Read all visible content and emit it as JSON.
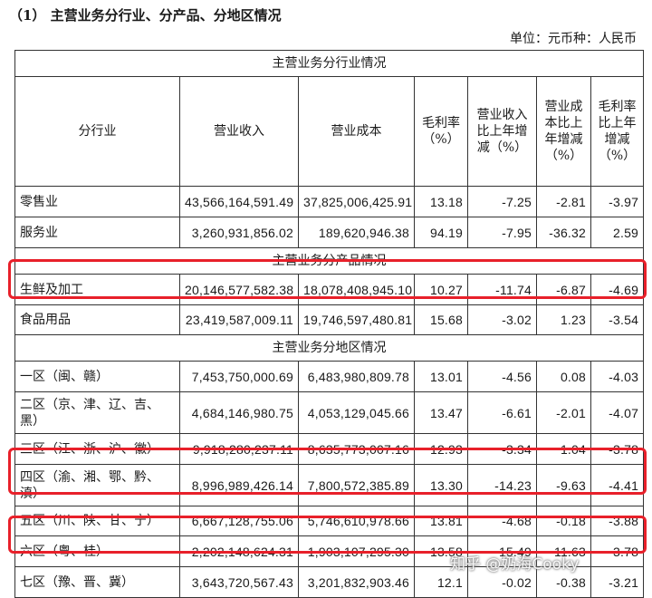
{
  "heading": "（1）  主营业务分行业、分产品、分地区情况",
  "unit_line": "单位：元币种：人民币",
  "columns": [
    "分行业",
    "营业收入",
    "营业成本",
    "毛利率（%）",
    "营业收入比上年增减（%）",
    "营业成本比上年增减（%）",
    "毛利率比上年增减（%）"
  ],
  "sections": [
    {
      "title": "主营业务分行业情况",
      "rows": [
        [
          "零售业",
          "43,566,164,591.49",
          "37,825,006,425.91",
          "13.18",
          "-7.25",
          "-2.81",
          "-3.97"
        ],
        [
          "服务业",
          "3,260,931,856.02",
          "189,620,946.38",
          "94.19",
          "-7.95",
          "-36.32",
          "2.59"
        ]
      ]
    },
    {
      "title": "主营业务分产品情况",
      "rows": [
        [
          "生鲜及加工",
          "20,146,577,582.38",
          "18,078,408,945.10",
          "10.27",
          "-11.74",
          "-6.87",
          "-4.69"
        ],
        [
          "食品用品",
          "23,419,587,009.11",
          "19,746,597,480.81",
          "15.68",
          "-3.02",
          "1.23",
          "-3.54"
        ]
      ]
    },
    {
      "title": "主营业务分地区情况",
      "rows": [
        [
          "一区（闽、赣）",
          "7,453,750,000.69",
          "6,483,980,809.78",
          "13.01",
          "-4.56",
          "0.08",
          "-4.03"
        ],
        [
          "二区（京、津、辽、吉、黑）",
          "4,684,146,980.75",
          "4,053,129,045.66",
          "13.47",
          "-6.61",
          "-2.01",
          "-4.07"
        ],
        [
          "三区（江、浙、沪、徽）",
          "9,918,280,237.11",
          "8,635,773,007.16",
          "12.93",
          "-3.34",
          "1.04",
          "-3.78"
        ],
        [
          "四区（渝、湘、鄂、黔、滇）",
          "8,996,989,426.14",
          "7,800,572,385.89",
          "13.30",
          "-14.23",
          "-9.63",
          "-4.41"
        ],
        [
          "五区（川、陕、甘、宁）",
          "6,667,128,755.06",
          "5,746,610,978.66",
          "13.81",
          "-4.68",
          "-0.18",
          "-3.88"
        ],
        [
          "六区（粤、桂）",
          "2,202,148,624.31",
          "1,903,107,295.30",
          "13.58",
          "-15.49",
          "-11.63",
          "-3.78"
        ],
        [
          "七区（豫、晋、冀）",
          "3,643,720,567.43",
          "3,201,832,903.46",
          "12.1",
          "-0.02",
          "-0.38",
          "-3.21"
        ]
      ]
    }
  ],
  "highlight_color": "#e8202a",
  "watermark": "知乎 @奶海Cooky"
}
